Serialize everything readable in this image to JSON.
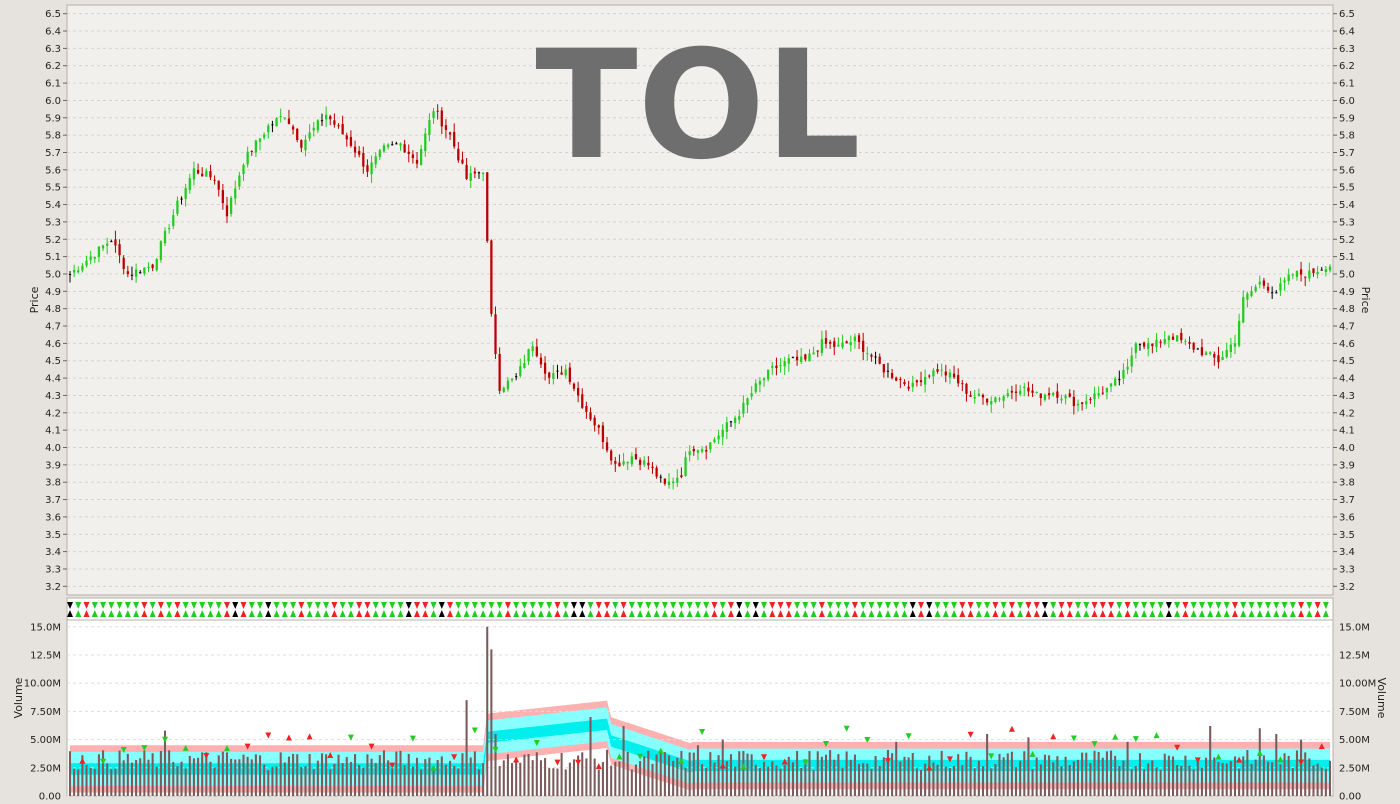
{
  "ticker": "TOL",
  "chart_data": {
    "type": "ohlc_bar_with_volume",
    "title": "TOL",
    "price_axis": {
      "label": "Price",
      "ylim": [
        3.15,
        6.55
      ],
      "ticks": [
        "3.2",
        "3.3",
        "3.4",
        "3.5",
        "3.6",
        "3.7",
        "3.8",
        "3.9",
        "4.0",
        "4.1",
        "4.2",
        "4.3",
        "4.4",
        "4.5",
        "4.6",
        "4.7",
        "4.8",
        "4.9",
        "5.0",
        "5.1",
        "5.2",
        "5.3",
        "5.4",
        "5.5",
        "5.6",
        "5.7",
        "5.8",
        "5.9",
        "6.0",
        "6.1",
        "6.2",
        "6.3",
        "6.4",
        "6.5"
      ]
    },
    "volume_axis": {
      "label": "Volume",
      "ylim": [
        0,
        15.6
      ],
      "unit": "M",
      "ticks": [
        "0.00",
        "2.50M",
        "5.00M",
        "7.50M",
        "10.00M",
        "12.5M",
        "15.0M"
      ]
    },
    "grid": true,
    "colors": {
      "up": "#22cc22",
      "down": "#bb0000",
      "neutral": "#000000",
      "volume_bar": "#7a5a5a",
      "band_outer": "#ffb0b0",
      "band_inner": "#88ffff",
      "band_core": "#00eeee"
    },
    "price_anchors": [
      [
        0,
        5.0
      ],
      [
        10,
        5.2
      ],
      [
        14,
        5.0
      ],
      [
        20,
        5.05
      ],
      [
        26,
        5.4
      ],
      [
        30,
        5.6
      ],
      [
        35,
        5.55
      ],
      [
        38,
        5.35
      ],
      [
        42,
        5.65
      ],
      [
        48,
        5.85
      ],
      [
        52,
        5.92
      ],
      [
        56,
        5.75
      ],
      [
        62,
        5.92
      ],
      [
        68,
        5.75
      ],
      [
        72,
        5.6
      ],
      [
        76,
        5.72
      ],
      [
        80,
        5.75
      ],
      [
        84,
        5.65
      ],
      [
        88,
        5.95
      ],
      [
        92,
        5.8
      ],
      [
        96,
        5.55
      ],
      [
        100,
        5.6
      ],
      [
        102,
        4.75
      ],
      [
        104,
        4.35
      ],
      [
        108,
        4.4
      ],
      [
        112,
        4.6
      ],
      [
        116,
        4.4
      ],
      [
        120,
        4.45
      ],
      [
        124,
        4.25
      ],
      [
        128,
        4.1
      ],
      [
        132,
        3.9
      ],
      [
        136,
        3.95
      ],
      [
        140,
        3.9
      ],
      [
        144,
        3.78
      ],
      [
        148,
        3.85
      ],
      [
        150,
        4.0
      ],
      [
        154,
        4.0
      ],
      [
        158,
        4.1
      ],
      [
        162,
        4.2
      ],
      [
        166,
        4.35
      ],
      [
        170,
        4.45
      ],
      [
        174,
        4.5
      ],
      [
        178,
        4.5
      ],
      [
        182,
        4.6
      ],
      [
        186,
        4.58
      ],
      [
        190,
        4.62
      ],
      [
        193,
        4.55
      ],
      [
        197,
        4.45
      ],
      [
        200,
        4.4
      ],
      [
        204,
        4.35
      ],
      [
        206,
        4.4
      ],
      [
        210,
        4.45
      ],
      [
        214,
        4.4
      ],
      [
        218,
        4.3
      ],
      [
        222,
        4.28
      ],
      [
        226,
        4.3
      ],
      [
        230,
        4.35
      ],
      [
        234,
        4.3
      ],
      [
        238,
        4.32
      ],
      [
        240,
        4.3
      ],
      [
        244,
        4.25
      ],
      [
        248,
        4.3
      ],
      [
        252,
        4.35
      ],
      [
        256,
        4.45
      ],
      [
        258,
        4.62
      ],
      [
        262,
        4.58
      ],
      [
        266,
        4.65
      ],
      [
        270,
        4.6
      ],
      [
        274,
        4.55
      ],
      [
        278,
        4.5
      ],
      [
        282,
        4.62
      ],
      [
        284,
        4.85
      ],
      [
        288,
        4.95
      ],
      [
        292,
        4.9
      ],
      [
        296,
        5.0
      ],
      [
        300,
        5.0
      ],
      [
        304,
        5.05
      ]
    ],
    "volume_spikes": [
      [
        23,
        5.8
      ],
      [
        96,
        8.5
      ],
      [
        101,
        15.0
      ],
      [
        102,
        13.0
      ],
      [
        103,
        5.5
      ],
      [
        126,
        7.0
      ],
      [
        134,
        6.2
      ],
      [
        152,
        4.5
      ],
      [
        158,
        5.0
      ],
      [
        200,
        4.8
      ],
      [
        222,
        5.5
      ],
      [
        232,
        5.2
      ],
      [
        256,
        4.8
      ],
      [
        276,
        6.2
      ],
      [
        288,
        6.0
      ],
      [
        292,
        5.5
      ],
      [
        298,
        5.0
      ]
    ],
    "volume_baseline": 3.2,
    "n_bars": 306
  }
}
